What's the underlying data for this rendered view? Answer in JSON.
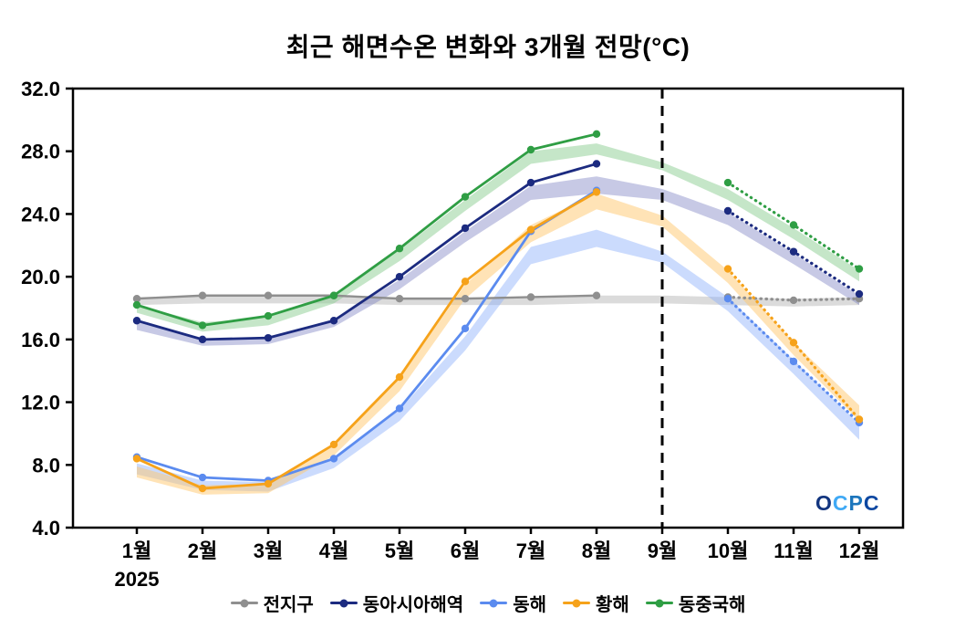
{
  "title": "최근 해면수온 변화와 3개월 전망(°C)",
  "watermark": {
    "text": "OCPC",
    "letters": [
      {
        "ch": "O",
        "color": "#12357f"
      },
      {
        "ch": "C",
        "color": "#3fa9f5"
      },
      {
        "ch": "P",
        "color": "#1b75bc"
      },
      {
        "ch": "C",
        "color": "#0d47a1"
      }
    ]
  },
  "chart_data": {
    "type": "line",
    "title": "최근 해면수온 변화와 3개월 전망(°C)",
    "xlabel": "",
    "ylabel": "",
    "ylim": [
      4.0,
      32.0
    ],
    "yticks": [
      4.0,
      8.0,
      12.0,
      16.0,
      20.0,
      24.0,
      28.0,
      32.0
    ],
    "categories": [
      "1월",
      "2월",
      "3월",
      "4월",
      "5월",
      "6월",
      "7월",
      "8월",
      "9월",
      "10월",
      "11월",
      "12월"
    ],
    "x_sub_label": {
      "index": 0,
      "text": "2025"
    },
    "forecast_divider_index": 8,
    "forecast_start_index": 9,
    "grid": false,
    "legend_position": "bottom",
    "notes": "solid line = observed Jan-Aug 2025, dotted line = 3-month forecast Oct-Dec, shaded band = climatological range, dashed vertical line at 9월",
    "series": [
      {
        "id": "global",
        "name": "전지구",
        "color": "#8f8f8f",
        "band_color": "rgba(175,175,175,0.45)",
        "observed": [
          18.6,
          18.8,
          18.8,
          18.8,
          18.6,
          18.6,
          18.7,
          18.8
        ],
        "forecast": [
          18.7,
          18.5,
          18.6
        ],
        "band_low": [
          18.2,
          18.3,
          18.3,
          18.3,
          18.2,
          18.2,
          18.2,
          18.3,
          18.3,
          18.2,
          18.1,
          18.2
        ],
        "band_high": [
          18.7,
          18.8,
          18.8,
          18.8,
          18.7,
          18.7,
          18.7,
          18.8,
          18.8,
          18.7,
          18.6,
          18.7
        ]
      },
      {
        "id": "east-asia",
        "name": "동아시아해역",
        "color": "#1c2b80",
        "band_color": "rgba(115,120,190,0.4)",
        "observed": [
          17.2,
          16.0,
          16.1,
          17.2,
          20.0,
          23.1,
          26.0,
          27.2
        ],
        "forecast": [
          24.2,
          21.6,
          18.9
        ],
        "band_low": [
          16.6,
          15.6,
          15.7,
          16.8,
          19.2,
          22.2,
          24.9,
          25.3,
          24.9,
          23.3,
          20.8,
          18.2
        ],
        "band_high": [
          17.1,
          16.0,
          16.1,
          17.3,
          19.8,
          22.9,
          25.8,
          26.4,
          25.6,
          24.1,
          21.5,
          18.8
        ]
      },
      {
        "id": "east-sea",
        "name": "동해",
        "color": "#5b8bef",
        "band_color": "rgba(140,175,250,0.45)",
        "observed": [
          8.5,
          7.2,
          7.0,
          8.4,
          11.6,
          16.7,
          22.9,
          25.5
        ],
        "forecast": [
          18.6,
          14.6,
          10.7
        ],
        "band_low": [
          7.4,
          6.4,
          6.3,
          7.8,
          10.8,
          15.3,
          20.8,
          21.9,
          20.9,
          17.8,
          13.8,
          9.6
        ],
        "band_high": [
          8.1,
          7.0,
          6.9,
          8.5,
          11.5,
          16.2,
          21.9,
          23.0,
          21.6,
          18.7,
          14.7,
          10.6
        ]
      },
      {
        "id": "yellow-sea",
        "name": "황해",
        "color": "#f6a21a",
        "band_color": "rgba(255,200,110,0.5)",
        "observed": [
          8.4,
          6.5,
          6.8,
          9.3,
          13.6,
          19.7,
          23.0,
          25.4
        ],
        "forecast": [
          20.5,
          15.8,
          10.9
        ],
        "band_low": [
          7.2,
          6.1,
          6.2,
          8.6,
          12.7,
          18.6,
          22.2,
          24.3,
          23.2,
          19.6,
          15.0,
          10.8
        ],
        "band_high": [
          7.9,
          6.7,
          6.8,
          9.3,
          13.5,
          19.5,
          23.3,
          25.3,
          23.9,
          20.4,
          15.8,
          11.8
        ]
      },
      {
        "id": "east-china-sea",
        "name": "동중국해",
        "color": "#2f9e44",
        "band_color": "rgba(140,205,145,0.5)",
        "observed": [
          18.2,
          16.9,
          17.5,
          18.8,
          21.8,
          25.1,
          28.1,
          29.1
        ],
        "forecast": [
          26.0,
          23.3,
          20.5
        ],
        "band_low": [
          17.7,
          16.5,
          16.9,
          18.3,
          21.0,
          24.2,
          27.2,
          27.8,
          26.8,
          24.9,
          22.4,
          19.7
        ],
        "band_high": [
          18.2,
          17.1,
          17.4,
          18.9,
          21.7,
          24.9,
          28.0,
          28.5,
          27.3,
          25.6,
          23.1,
          20.4
        ]
      }
    ]
  }
}
